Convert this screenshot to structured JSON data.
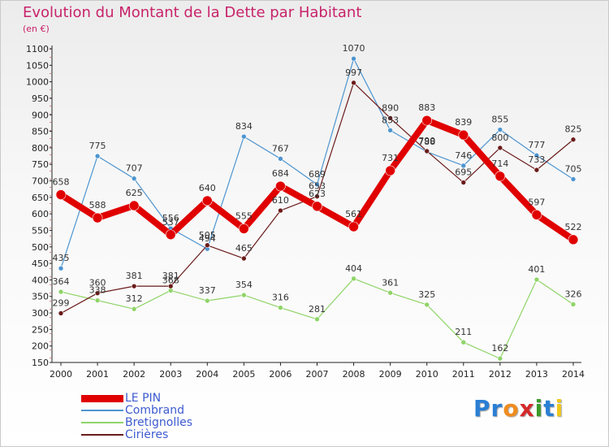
{
  "header": {
    "title": "Evolution du Montant de la Dette par Habitant",
    "unit": "(en €)"
  },
  "chart_data": {
    "type": "line",
    "title": "Evolution du Montant de la Dette par Habitant",
    "ylabel": "(en €)",
    "xlabel": "",
    "x": [
      "2000",
      "2001",
      "2002",
      "2003",
      "2004",
      "2005",
      "2006",
      "2007",
      "2008",
      "2009",
      "2010",
      "2011",
      "2012",
      "2013",
      "2014"
    ],
    "ylim": [
      150,
      1100
    ],
    "yticks": [
      150,
      200,
      250,
      300,
      350,
      400,
      450,
      500,
      550,
      600,
      650,
      700,
      750,
      800,
      850,
      900,
      950,
      1000,
      1050,
      1100
    ],
    "grid": false,
    "legend_position": "bottom-left",
    "series": [
      {
        "name": "LE PIN",
        "color": "#e00000",
        "values": [
          658,
          588,
          625,
          537,
          640,
          555,
          684,
          623,
          561,
          731,
          883,
          839,
          714,
          597,
          522
        ]
      },
      {
        "name": "Combrand",
        "color": "#4d95d0",
        "values": [
          435,
          775,
          707,
          556,
          494,
          834,
          767,
          689,
          1070,
          853,
          788,
          746,
          855,
          777,
          705
        ]
      },
      {
        "name": "Bretignolles",
        "color": "#8fd468",
        "values": [
          364,
          338,
          312,
          368,
          337,
          354,
          316,
          281,
          404,
          361,
          325,
          211,
          162,
          401,
          326
        ]
      },
      {
        "name": "Cirières",
        "color": "#6b1a1a",
        "values": [
          299,
          360,
          381,
          381,
          505,
          465,
          610,
          653,
          997,
          890,
          790,
          695,
          800,
          733,
          825
        ]
      }
    ]
  },
  "logo": {
    "text": "Proxiti",
    "letters": [
      {
        "ch": "P",
        "color": "#2a7fd4"
      },
      {
        "ch": "r",
        "color": "#2a7fd4"
      },
      {
        "ch": "o",
        "color": "#f08c1e"
      },
      {
        "ch": "x",
        "color": "#d42a2a"
      },
      {
        "ch": "i",
        "color": "#3a9a2a"
      },
      {
        "ch": "t",
        "color": "#2a7fd4"
      },
      {
        "ch": "i",
        "color": "#f0c81e"
      }
    ]
  }
}
